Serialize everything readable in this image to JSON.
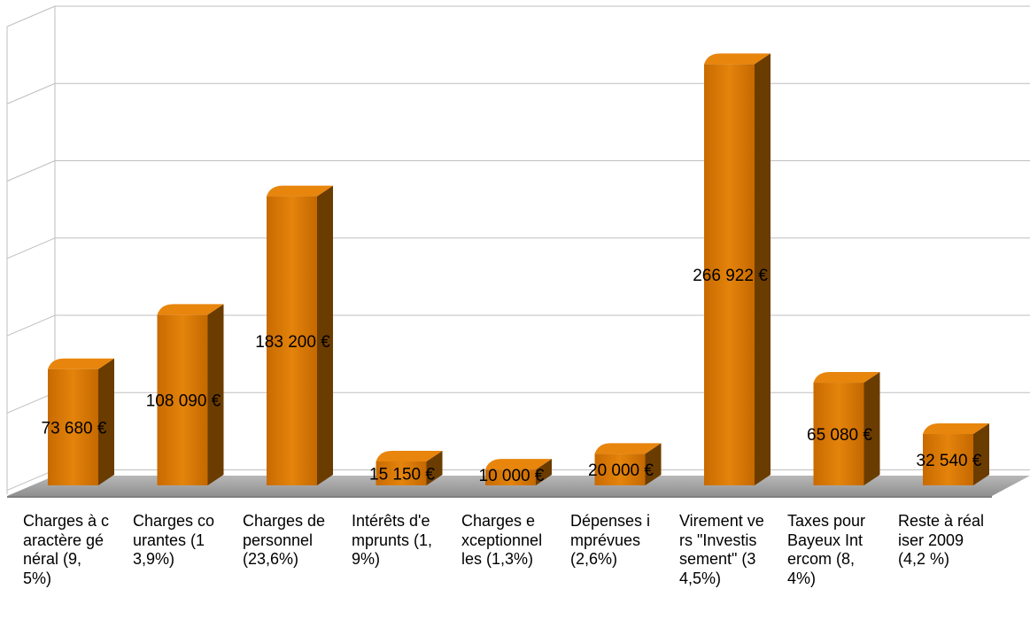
{
  "chart_data": {
    "type": "bar",
    "categories": [
      "Charges à caractère général (9,5%)",
      "Charges courantes (13,9%)",
      "Charges de personnel (23,6%)",
      "Intérêts d'emprunts (1,9%)",
      "Charges exceptionnelles (1,3%)",
      "Dépenses imprévues (2,6%)",
      "Virement vers \"Investissement\" (34,5%)",
      "Taxes pour Bayeux Intercom (8,4%)",
      "Reste à réaliser 2009 (4,2 %)"
    ],
    "values": [
      73680,
      108090,
      183200,
      15150,
      10000,
      20000,
      266922,
      65080,
      32540
    ],
    "value_labels": [
      "73 680 €",
      "108 090 €",
      "183 200 €",
      "15 150 €",
      "10 000 €",
      "20 000 €",
      "266 922 €",
      "65 080 €",
      "32 540 €"
    ],
    "ylim": [
      0,
      300000
    ],
    "grid": true,
    "style": "3d-column",
    "colors": {
      "bar_front": "#d97a06",
      "bar_side": "#6b3c00",
      "bar_top": "#e8850c",
      "floor": "#a6a6a6",
      "grid": "#bfbfbf"
    }
  }
}
